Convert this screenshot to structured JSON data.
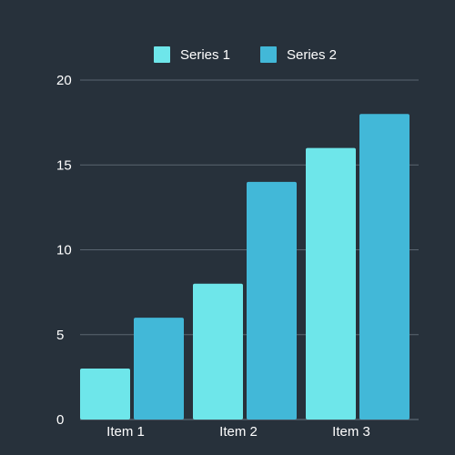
{
  "chart_data": {
    "type": "bar",
    "title": "",
    "xlabel": "",
    "ylabel": "",
    "categories": [
      "Item 1",
      "Item 2",
      "Item 3"
    ],
    "series": [
      {
        "name": "Series 1",
        "values": [
          3,
          8,
          16
        ],
        "color": "#6ee6ea"
      },
      {
        "name": "Series 2",
        "values": [
          6,
          14,
          18
        ],
        "color": "#42b8d8"
      }
    ],
    "ylim": [
      0,
      20
    ],
    "yticks": [
      0,
      5,
      10,
      15,
      20
    ],
    "grid": true,
    "legend": "top-center"
  },
  "colors": {
    "background": "#27313b",
    "text": "#ffffff",
    "grid": "#5a6570"
  }
}
